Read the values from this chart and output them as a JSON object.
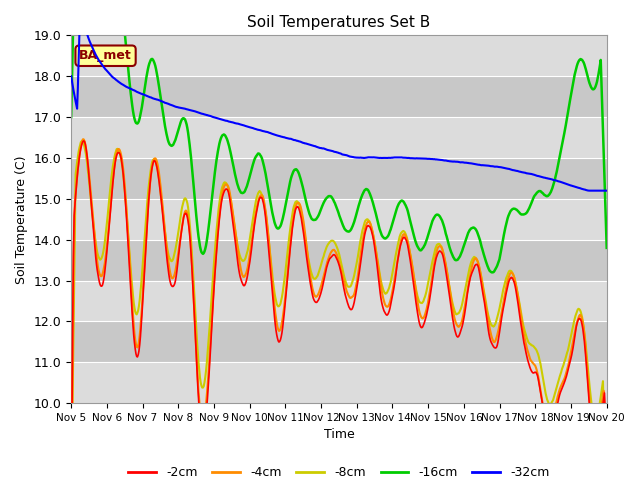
{
  "title": "Soil Temperatures Set B",
  "xlabel": "Time",
  "ylabel": "Soil Temperature (C)",
  "ylim": [
    10.0,
    19.0
  ],
  "yticks": [
    10.0,
    11.0,
    12.0,
    13.0,
    14.0,
    15.0,
    16.0,
    17.0,
    18.0,
    19.0
  ],
  "xtick_labels": [
    "Nov 5",
    "Nov 6",
    "Nov 7",
    "Nov 8",
    "Nov 9",
    "Nov 10",
    "Nov 11",
    "Nov 12",
    "Nov 13",
    "Nov 14",
    "Nov 15",
    "Nov 16",
    "Nov 17",
    "Nov 18",
    "Nov 19",
    "Nov 20"
  ],
  "annotation_text": "BA_met",
  "annotation_color": "#8B0000",
  "annotation_bg": "#FFFF99",
  "plot_bg": "#E0E0E0",
  "stripe_color": "#CACACA",
  "colors": {
    "-2cm": "#FF0000",
    "-4cm": "#FF8C00",
    "-8cm": "#CCCC00",
    "-16cm": "#00CC00",
    "-32cm": "#0000FF"
  },
  "legend_labels": [
    "-2cm",
    "-4cm",
    "-8cm",
    "-16cm",
    "-32cm"
  ],
  "n_points": 720
}
